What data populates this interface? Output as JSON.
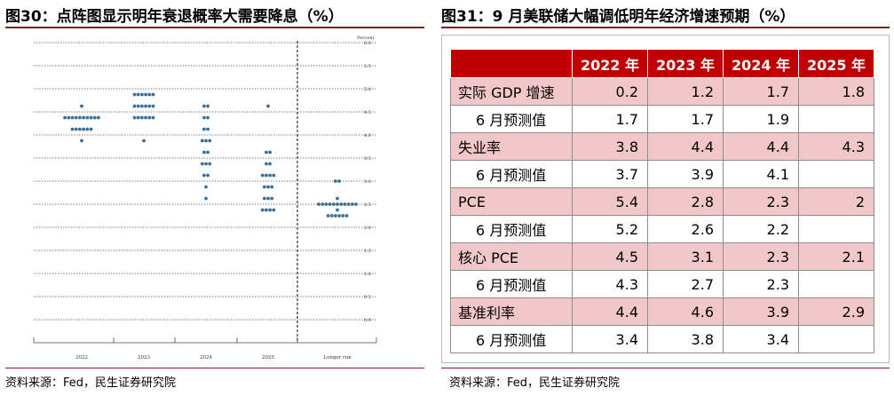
{
  "left_panel": {
    "title": "图30：点阵图显示明年衰退概率大需要降息（%）",
    "source": "资料来源：Fed，民生证券研究院"
  },
  "right_panel": {
    "title": "图31：9 月美联储大幅调低明年经济增速预期（%）",
    "source": "资料来源：Fed，民生证券研究院"
  },
  "colors": {
    "dot": "#3a6f9a",
    "title_rule": "#8b1a1a",
    "header_bg": "#c00000",
    "actual_row_bg": "#f2c7c9"
  },
  "chart_data": [
    {
      "type": "scatter",
      "subtype": "dot-plot",
      "ylabel": "Percent",
      "ylim": [
        0,
        6
      ],
      "yticks": [
        "0.0",
        "0.5",
        "1.0",
        "1.5",
        "2.0",
        "2.5",
        "3.0",
        "3.5",
        "4.0",
        "4.5",
        "5.0",
        "5.5",
        "6.0"
      ],
      "categories": [
        "2022",
        "2023",
        "2024",
        "2025",
        "Longer run"
      ],
      "grid": true,
      "dots": [
        {
          "category": "2022",
          "levels": [
            {
              "y": 4.625,
              "count": 1
            },
            {
              "y": 4.375,
              "count": 10
            },
            {
              "y": 4.125,
              "count": 6
            },
            {
              "y": 3.875,
              "count": 1
            }
          ]
        },
        {
          "category": "2023",
          "levels": [
            {
              "y": 4.875,
              "count": 6
            },
            {
              "y": 4.625,
              "count": 6
            },
            {
              "y": 4.375,
              "count": 6
            },
            {
              "y": 3.875,
              "count": 1
            }
          ]
        },
        {
          "category": "2024",
          "levels": [
            {
              "y": 4.625,
              "count": 2
            },
            {
              "y": 4.375,
              "count": 2
            },
            {
              "y": 4.125,
              "count": 2
            },
            {
              "y": 3.875,
              "count": 3
            },
            {
              "y": 3.625,
              "count": 2
            },
            {
              "y": 3.375,
              "count": 3
            },
            {
              "y": 3.125,
              "count": 2
            },
            {
              "y": 2.875,
              "count": 1
            },
            {
              "y": 2.625,
              "count": 1
            }
          ]
        },
        {
          "category": "2025",
          "levels": [
            {
              "y": 4.625,
              "count": 1
            },
            {
              "y": 3.625,
              "count": 2
            },
            {
              "y": 3.375,
              "count": 2
            },
            {
              "y": 3.125,
              "count": 4
            },
            {
              "y": 2.875,
              "count": 3
            },
            {
              "y": 2.625,
              "count": 3
            },
            {
              "y": 2.375,
              "count": 4
            }
          ]
        },
        {
          "category": "Longer run",
          "levels": [
            {
              "y": 3.0,
              "count": 2
            },
            {
              "y": 2.625,
              "count": 1
            },
            {
              "y": 2.5,
              "count": 11
            },
            {
              "y": 2.375,
              "count": 1
            },
            {
              "y": 2.25,
              "count": 6
            }
          ]
        }
      ]
    },
    {
      "type": "table",
      "columns": [
        "2022 年",
        "2023 年",
        "2024 年",
        "2025 年"
      ],
      "rows": [
        {
          "label": "实际 GDP 增速",
          "kind": "actual",
          "values": [
            "0.2",
            "1.2",
            "1.7",
            "1.8"
          ]
        },
        {
          "label": "6 月预测值",
          "kind": "proj",
          "values": [
            "1.7",
            "1.7",
            "1.9",
            ""
          ]
        },
        {
          "label": "失业率",
          "kind": "actual",
          "values": [
            "3.8",
            "4.4",
            "4.4",
            "4.3"
          ]
        },
        {
          "label": "6 月预测值",
          "kind": "proj",
          "values": [
            "3.7",
            "3.9",
            "4.1",
            ""
          ]
        },
        {
          "label": "PCE",
          "kind": "actual",
          "values": [
            "5.4",
            "2.8",
            "2.3",
            "2"
          ]
        },
        {
          "label": "6 月预测值",
          "kind": "proj",
          "values": [
            "5.2",
            "2.6",
            "2.2",
            ""
          ]
        },
        {
          "label": "核心 PCE",
          "kind": "actual",
          "values": [
            "4.5",
            "3.1",
            "2.3",
            "2.1"
          ]
        },
        {
          "label": "6 月预测值",
          "kind": "proj",
          "values": [
            "4.3",
            "2.7",
            "2.3",
            ""
          ]
        },
        {
          "label": "基准利率",
          "kind": "actual",
          "values": [
            "4.4",
            "4.6",
            "3.9",
            "2.9"
          ]
        },
        {
          "label": "6 月预测值",
          "kind": "proj",
          "values": [
            "3.4",
            "3.8",
            "3.4",
            ""
          ]
        }
      ]
    }
  ]
}
